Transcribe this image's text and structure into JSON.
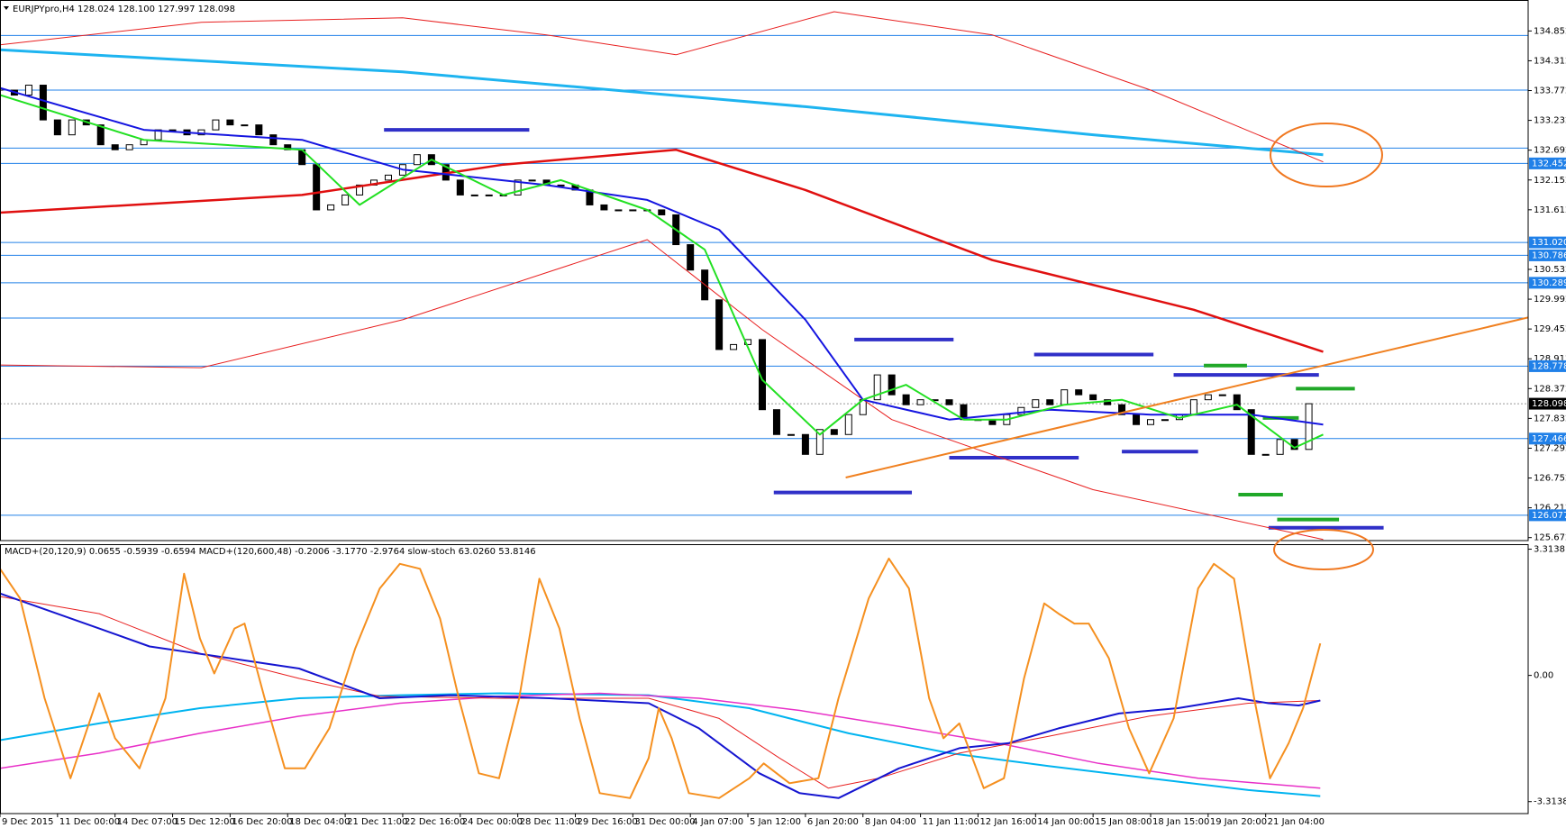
{
  "chart_data": [
    {
      "type": "candlestick",
      "title": "EURJPYpro,H4  128.024 128.100 127.997 128.098",
      "categories": [
        "9 Dec 2015",
        null,
        null,
        null,
        "11 Dec 00:00",
        null,
        null,
        null,
        "14 Dec 07:00",
        null,
        null,
        null,
        "15 Dec 12:00",
        null,
        null,
        null,
        "16 Dec 20:00",
        null,
        null,
        null,
        "18 Dec 04:00",
        null,
        null,
        null,
        "21 Dec 11:00",
        null,
        null,
        null,
        "22 Dec 16:00",
        null,
        null,
        null,
        "24 Dec 00:00",
        null,
        null,
        null,
        "28 Dec 11:00",
        null,
        null,
        null,
        "29 Dec 16:00",
        null,
        null,
        null,
        "31 Dec 00:00",
        null,
        null,
        null,
        "4 Jan 07:00",
        null,
        null,
        null,
        "5 Jan 12:00",
        null,
        null,
        null,
        "6 Jan 20:00",
        null,
        null,
        null,
        "8 Jan 04:00",
        null,
        null,
        null,
        "11 Jan 11:00",
        null,
        null,
        null,
        "12 Jan 16:00",
        null,
        null,
        null,
        "14 Jan 00:00",
        null,
        null,
        null,
        "15 Jan 08:00",
        null,
        null,
        null,
        "18 Jan 15:00",
        null,
        null,
        null,
        "19 Jan 20:00",
        null,
        null,
        null,
        "21 Jan 04:00",
        null,
        null,
        null
      ],
      "close": [
        133.78,
        133.69,
        133.87,
        133.24,
        132.97,
        133.24,
        133.15,
        132.79,
        132.7,
        132.79,
        132.88,
        133.06,
        133.06,
        132.97,
        133.06,
        133.24,
        133.15,
        133.15,
        132.97,
        132.79,
        132.7,
        132.43,
        131.61,
        131.7,
        131.88,
        132.06,
        132.15,
        132.24,
        132.43,
        132.61,
        132.43,
        132.15,
        131.88,
        131.88,
        131.88,
        131.88,
        132.15,
        132.15,
        132.06,
        132.06,
        131.97,
        131.7,
        131.61,
        131.61,
        131.61,
        131.61,
        131.52,
        130.98,
        130.52,
        129.98,
        129.08,
        129.17,
        129.26,
        127.99,
        127.54,
        127.54,
        127.18,
        127.63,
        127.54,
        127.9,
        128.17,
        128.62,
        128.26,
        128.08,
        128.17,
        128.17,
        128.08,
        127.81,
        127.81,
        127.72,
        127.9,
        128.03,
        128.17,
        128.08,
        128.35,
        128.26,
        128.17,
        128.08,
        127.9,
        127.72,
        127.81,
        127.81,
        127.9,
        128.17,
        128.26,
        128.26,
        127.99,
        127.18,
        127.18,
        127.45,
        127.27,
        128.098
      ],
      "xlim": [
        0,
        106.25
      ],
      "ylim": [
        125.618,
        135.413
      ],
      "yticks": [
        134.852,
        134.312,
        133.772,
        133.232,
        132.692,
        132.152,
        131.612,
        130.532,
        129.992,
        129.452,
        128.912,
        128.372,
        127.832,
        127.292,
        126.752,
        126.212,
        125.672
      ],
      "levels": [
        134.77,
        133.78,
        132.73,
        129.65
      ],
      "marked_levels": [
        132.452,
        {
          "value": 131.02,
          "label": "131.020"
        },
        130.786,
        130.289,
        128.778,
        127.466,
        126.077
      ],
      "current_price": 128.098,
      "lines": [
        {
          "color": "#1eb4f0",
          "width": 3,
          "x": [
            0,
            28,
            56,
            76,
            92
          ],
          "values": [
            134.51,
            134.11,
            133.48,
            132.97,
            132.61
          ]
        },
        {
          "color": "#e01010",
          "width": 2.5,
          "x": [
            0,
            21,
            35,
            47,
            56,
            69,
            83,
            92
          ],
          "values": [
            131.56,
            131.88,
            132.43,
            132.7,
            131.97,
            130.7,
            129.8,
            129.04
          ]
        },
        {
          "color": "#e82020",
          "width": 1,
          "x": [
            0,
            14,
            28,
            38,
            47,
            58,
            69,
            80,
            92
          ],
          "values": [
            134.6,
            135.01,
            135.09,
            134.78,
            134.42,
            135.2,
            134.78,
            133.78,
            132.48
          ]
        },
        {
          "color": "#e82020",
          "width": 1,
          "x": [
            0,
            14,
            28,
            45,
            53,
            62,
            76,
            92
          ],
          "values": [
            128.8,
            128.75,
            129.62,
            131.07,
            129.44,
            127.81,
            126.54,
            125.64
          ]
        },
        {
          "color": "#1515e0",
          "width": 2,
          "x": [
            0,
            10,
            21,
            28,
            38,
            45,
            50,
            56,
            60,
            66,
            73,
            80,
            87,
            92
          ],
          "values": [
            133.82,
            133.06,
            132.88,
            132.34,
            132.06,
            131.79,
            131.25,
            129.62,
            128.17,
            127.81,
            127.99,
            127.9,
            127.9,
            127.72
          ]
        },
        {
          "color": "#22e022",
          "width": 2,
          "x": [
            0,
            10,
            21,
            25,
            30,
            35,
            39,
            45,
            49,
            53,
            57,
            60,
            63,
            67,
            70,
            74,
            78,
            82,
            86,
            90,
            92
          ],
          "values": [
            133.69,
            132.88,
            132.7,
            131.7,
            132.52,
            131.88,
            132.15,
            131.61,
            130.89,
            128.53,
            127.54,
            128.17,
            128.44,
            127.81,
            127.81,
            128.08,
            128.17,
            127.84,
            128.08,
            127.3,
            127.54
          ]
        },
        {
          "color": "#f08020",
          "width": 2,
          "x": [
            58.8,
            106.25
          ],
          "values": [
            126.76,
            129.66
          ]
        }
      ],
      "segments": [
        {
          "x": [
            26.7,
            36.8
          ],
          "value": 133.06,
          "color": "#3030c8"
        },
        {
          "x": [
            59.4,
            66.3
          ],
          "value": 129.26,
          "color": "#3030c8"
        },
        {
          "x": [
            53.8,
            63.4
          ],
          "value": 126.49,
          "color": "#3030c8"
        },
        {
          "x": [
            66,
            75
          ],
          "value": 127.12,
          "color": "#3030c8"
        },
        {
          "x": [
            71.9,
            80.2
          ],
          "value": 128.99,
          "color": "#3030c8"
        },
        {
          "x": [
            78,
            83.3
          ],
          "value": 127.23,
          "color": "#3030c8"
        },
        {
          "x": [
            81.6,
            91.7
          ],
          "value": 128.62,
          "color": "#3030c8"
        },
        {
          "x": [
            88.2,
            96.2
          ],
          "value": 125.85,
          "color": "#3030c8"
        },
        {
          "x": [
            83.7,
            86.7
          ],
          "value": 128.79,
          "color": "#20a828"
        },
        {
          "x": [
            90.1,
            94.2
          ],
          "value": 128.37,
          "color": "#20a828"
        },
        {
          "x": [
            87.8,
            90.3
          ],
          "value": 127.84,
          "color": "#20a828"
        },
        {
          "x": [
            86.1,
            89.2
          ],
          "value": 126.45,
          "color": "#20a828"
        },
        {
          "x": [
            88.8,
            93.1
          ],
          "value": 126.0,
          "color": "#20a828"
        }
      ]
    },
    {
      "type": "line",
      "title": "MACD+(20,120,9) 0.0655 -0.5939 -0.6594  MACD+(120,600,48) -0.2006 -3.1770 -2.9764  slow-stoch 63.0260 53.8146",
      "xlim": [
        0,
        106.25
      ],
      "ylim": [
        -3.628,
        3.445
      ],
      "yticks": [
        3.3138,
        {
          "value": 0,
          "label": "0.00"
        },
        -3.3138
      ],
      "lines": [
        {
          "color": "#00b4f0",
          "width": 2,
          "x": [
            0,
            6.9,
            13.9,
            20.8,
            27.8,
            34.7,
            45.1,
            52.1,
            59,
            66,
            72.9,
            79.9,
            86.8,
            91.8
          ],
          "values": [
            -1.7,
            -1.26,
            -0.86,
            -0.6,
            -0.52,
            -0.47,
            -0.52,
            -0.86,
            -1.52,
            -2.04,
            -2.38,
            -2.7,
            -3.01,
            -3.17
          ]
        },
        {
          "color": "#e830c8",
          "width": 1.5,
          "x": [
            0,
            6.9,
            13.9,
            20.8,
            27.8,
            34.7,
            41.7,
            48.6,
            55.6,
            62.5,
            69.4,
            76.4,
            83.3,
            91.8
          ],
          "values": [
            -2.44,
            -2.04,
            -1.52,
            -1.07,
            -0.73,
            -0.55,
            -0.47,
            -0.6,
            -0.92,
            -1.34,
            -1.78,
            -2.31,
            -2.7,
            -2.96
          ]
        },
        {
          "color": "#e82020",
          "width": 1,
          "x": [
            0,
            6.9,
            13.9,
            20.8,
            26.4,
            34.7,
            45.1,
            50,
            54.2,
            57.6,
            61.1,
            66.7,
            72.9,
            79.9,
            86.8,
            91.8
          ],
          "values": [
            2.07,
            1.62,
            0.58,
            -0.08,
            -0.55,
            -0.6,
            -0.6,
            -1.13,
            -2.17,
            -2.96,
            -2.7,
            -2.04,
            -1.6,
            -1.07,
            -0.73,
            -0.66
          ]
        },
        {
          "color": "#1515d0",
          "width": 2,
          "x": [
            0,
            6.9,
            10.4,
            16,
            20.8,
            26.4,
            31.3,
            38.2,
            45.1,
            48.6,
            52.8,
            55.6,
            58.3,
            62.5,
            66.7,
            70.1,
            73.6,
            77.8,
            81.9,
            86.1,
            88.2,
            90.3,
            91.8
          ],
          "values": [
            2.15,
            1.23,
            0.76,
            0.45,
            0.18,
            -0.6,
            -0.52,
            -0.6,
            -0.73,
            -1.39,
            -2.57,
            -3.09,
            -3.22,
            -2.44,
            -1.91,
            -1.78,
            -1.39,
            -1.0,
            -0.86,
            -0.6,
            -0.73,
            -0.79,
            -0.66
          ]
        },
        {
          "color": "#f59020",
          "width": 2,
          "x": [
            0,
            1.4,
            3.1,
            4.9,
            6.3,
            6.9,
            8,
            9.7,
            11.5,
            12.8,
            13.9,
            14.9,
            16.3,
            17,
            18.4,
            19.8,
            21.2,
            22.9,
            24.7,
            26.4,
            27.8,
            29.2,
            30.6,
            31.9,
            33.3,
            34.7,
            36.1,
            37.5,
            38.9,
            40.3,
            41.7,
            43.8,
            45.1,
            45.8,
            46.7,
            47.9,
            50,
            52.1,
            53.1,
            54.9,
            56.9,
            58.3,
            60.4,
            61.8,
            63.2,
            64.6,
            65.6,
            66.7,
            68.4,
            69.8,
            71.2,
            72.6,
            73.6,
            74.7,
            75.7,
            77.1,
            78.5,
            79.9,
            81.6,
            83.3,
            84.4,
            85.8,
            87.2,
            88.3,
            89.6,
            90.6,
            91.8
          ],
          "values": [
            2.8,
            2.02,
            -0.6,
            -2.7,
            -1.13,
            -0.47,
            -1.65,
            -2.44,
            -0.6,
            2.67,
            0.97,
            0.05,
            1.23,
            1.36,
            -0.6,
            -2.44,
            -2.44,
            -1.39,
            0.71,
            2.28,
            2.93,
            2.8,
            1.49,
            -0.6,
            -2.57,
            -2.7,
            -0.6,
            2.54,
            1.23,
            -1.13,
            -3.09,
            -3.22,
            -2.17,
            -0.86,
            -1.65,
            -3.09,
            -3.22,
            -2.7,
            -2.31,
            -2.83,
            -2.7,
            -0.6,
            2.02,
            3.07,
            2.28,
            -0.6,
            -1.65,
            -1.26,
            -2.96,
            -2.7,
            -0.08,
            1.89,
            1.62,
            1.36,
            1.36,
            0.45,
            -1.39,
            -2.57,
            -1.13,
            2.28,
            2.93,
            2.54,
            -0.6,
            -2.7,
            -1.78,
            -0.86,
            0.84
          ]
        }
      ]
    }
  ]
}
